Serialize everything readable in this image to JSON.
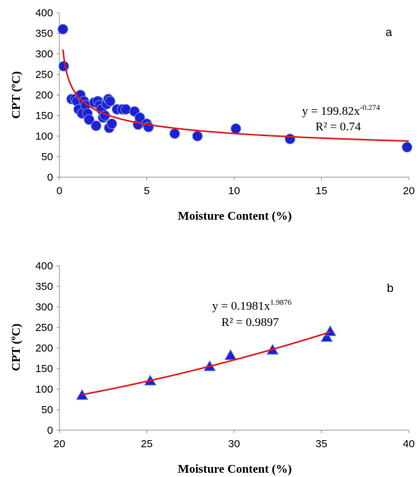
{
  "chart_data": [
    {
      "id": "a",
      "type": "scatter",
      "panel_label": "a",
      "xlabel": "Moisture Content (%)",
      "ylabel": "CPT (ºC)",
      "xlim": [
        0,
        20
      ],
      "ylim": [
        0,
        400
      ],
      "xticks": [
        0,
        5,
        10,
        15,
        20
      ],
      "yticks": [
        0,
        50,
        100,
        150,
        200,
        250,
        300,
        350,
        400
      ],
      "grid": false,
      "marker": "circle",
      "marker_color": "#1f1fd6",
      "fit_color": "#e31a1c",
      "points": [
        [
          0.2,
          360
        ],
        [
          0.25,
          270
        ],
        [
          0.7,
          190
        ],
        [
          0.9,
          190
        ],
        [
          1.0,
          185
        ],
        [
          1.1,
          165
        ],
        [
          1.2,
          200
        ],
        [
          1.3,
          155
        ],
        [
          1.4,
          185
        ],
        [
          1.5,
          175
        ],
        [
          1.6,
          155
        ],
        [
          1.7,
          140
        ],
        [
          2.0,
          182
        ],
        [
          2.1,
          125
        ],
        [
          2.2,
          185
        ],
        [
          2.3,
          175
        ],
        [
          2.4,
          165
        ],
        [
          2.5,
          145
        ],
        [
          2.6,
          150
        ],
        [
          2.7,
          178
        ],
        [
          2.8,
          190
        ],
        [
          2.85,
          120
        ],
        [
          2.9,
          185
        ],
        [
          3.0,
          130
        ],
        [
          3.3,
          165
        ],
        [
          3.6,
          165
        ],
        [
          3.8,
          165
        ],
        [
          4.3,
          160
        ],
        [
          4.5,
          128
        ],
        [
          4.6,
          145
        ],
        [
          5.0,
          130
        ],
        [
          5.1,
          122
        ],
        [
          6.6,
          106
        ],
        [
          7.9,
          100
        ],
        [
          10.1,
          118
        ],
        [
          13.2,
          93
        ],
        [
          19.9,
          73
        ]
      ],
      "fit": {
        "type": "power",
        "a": 199.82,
        "b": -0.274,
        "x_range": [
          0.2,
          20
        ]
      },
      "equation": {
        "prefix": "y = 199.82x",
        "exponent": "-0.274",
        "r2": "R² = 0.74"
      }
    },
    {
      "id": "b",
      "type": "scatter",
      "panel_label": "b",
      "xlabel": "Moisture Content (%)",
      "ylabel": "CPT (ºC)",
      "xlim": [
        20,
        40
      ],
      "ylim": [
        0,
        400
      ],
      "xticks": [
        20,
        25,
        30,
        35,
        40
      ],
      "yticks": [
        0,
        50,
        100,
        150,
        200,
        250,
        300,
        350,
        400
      ],
      "grid": false,
      "marker": "triangle",
      "marker_color": "#1f1fd6",
      "fit_color": "#e31a1c",
      "points": [
        [
          21.3,
          85
        ],
        [
          25.2,
          120
        ],
        [
          28.6,
          155
        ],
        [
          29.8,
          182
        ],
        [
          32.2,
          195
        ],
        [
          35.3,
          226
        ],
        [
          35.5,
          240
        ]
      ],
      "fit": {
        "type": "power",
        "a": 0.1981,
        "b": 1.9876,
        "x_range": [
          21.3,
          35.5
        ]
      },
      "equation": {
        "prefix": "y = 0.1981x",
        "exponent": "1.9876",
        "r2": "R² = 0.9897"
      }
    }
  ]
}
